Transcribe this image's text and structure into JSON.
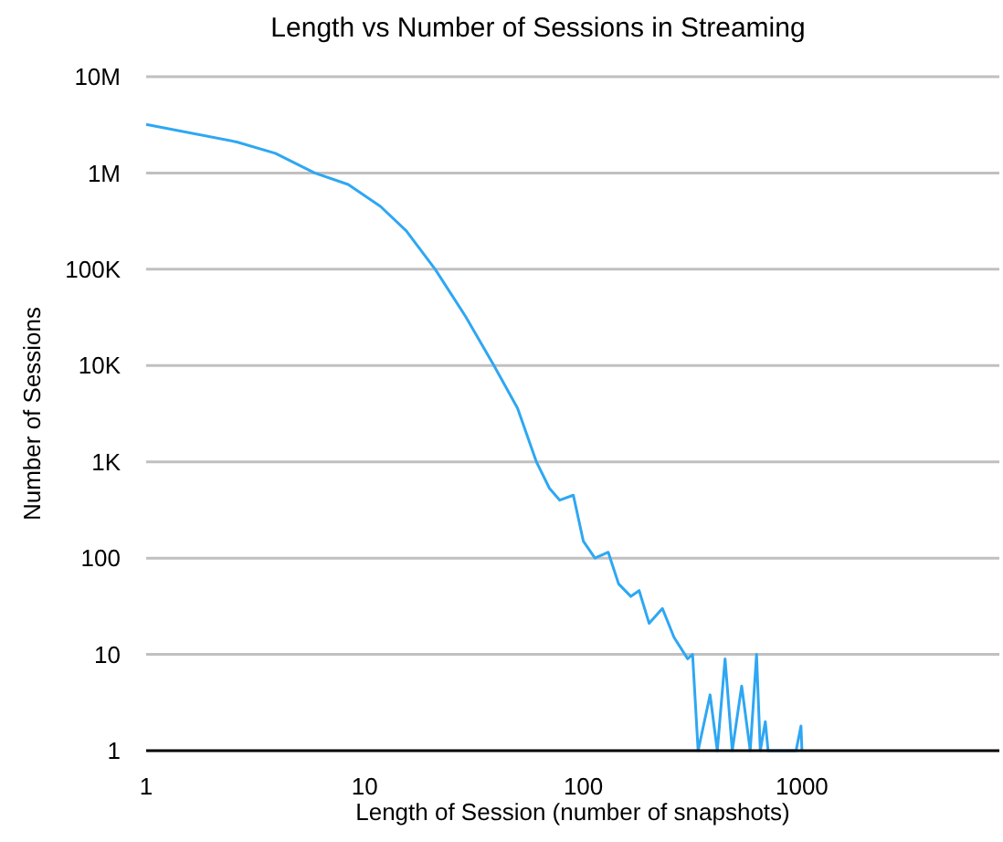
{
  "chart_data": {
    "type": "line",
    "title": "Length vs Number of Sessions in Streaming",
    "xlabel": "Length of Session (number of snapshots)",
    "ylabel": "Number of Sessions",
    "log": "xy",
    "grid": "y",
    "marker": "none",
    "line_style": "solid",
    "xlim": [
      1,
      8000
    ],
    "xticks": [
      1,
      10,
      100,
      1000
    ],
    "ylim": [
      1,
      10000000
    ],
    "yticks": [
      {
        "value": 1,
        "label": "1"
      },
      {
        "value": 10,
        "label": "10"
      },
      {
        "value": 100,
        "label": "100"
      },
      {
        "value": 1000,
        "label": "1K"
      },
      {
        "value": 10000,
        "label": "10K"
      },
      {
        "value": 100000,
        "label": "100K"
      },
      {
        "value": 1000000,
        "label": "1M"
      },
      {
        "value": 10000000,
        "label": "10M"
      }
    ],
    "series": [
      {
        "color": "#2ea7f3",
        "x": [
          1,
          2.6,
          3.9,
          5.9,
          8.4,
          11.8,
          15.5,
          21,
          29,
          39,
          50,
          61,
          70,
          78,
          90,
          100,
          113,
          130,
          145,
          165,
          180,
          200,
          230,
          260,
          300,
          316,
          335,
          380,
          410,
          445,
          480,
          530,
          580,
          620,
          645,
          680,
          700,
          940,
          990,
          1000
        ],
        "values": [
          3200000,
          2100000,
          1600000,
          1000000,
          760000,
          450000,
          250000,
          100000,
          32000,
          10000,
          3600,
          1000,
          530,
          400,
          450,
          150,
          100,
          115,
          54,
          40,
          46,
          21,
          30,
          15,
          9,
          10,
          1,
          3.8,
          1,
          9,
          1,
          4.7,
          1,
          10,
          1,
          2,
          1,
          1,
          1.8,
          1
        ]
      }
    ]
  }
}
